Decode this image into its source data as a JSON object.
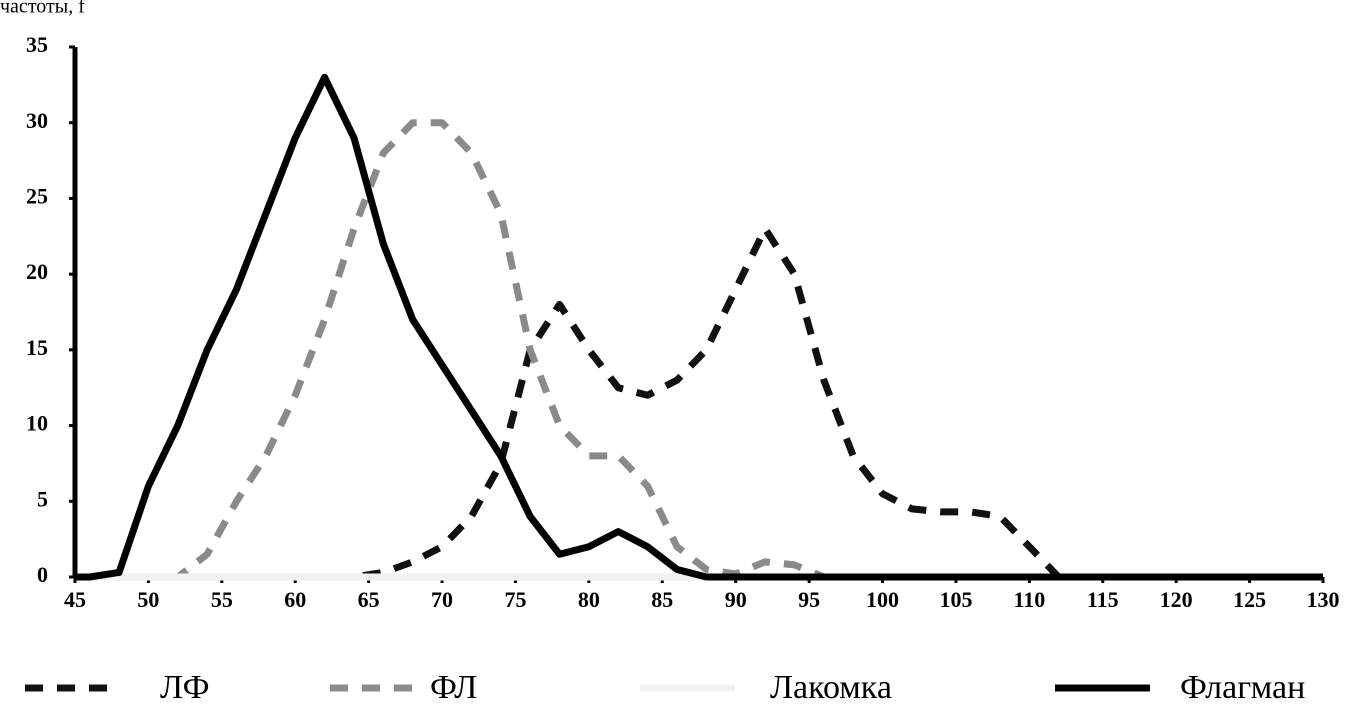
{
  "chart_data": {
    "type": "line",
    "ylabel": "частоты, f",
    "x": [
      45,
      46,
      48,
      50,
      52,
      54,
      56,
      58,
      60,
      62,
      64,
      66,
      68,
      70,
      72,
      74,
      76,
      78,
      80,
      82,
      84,
      86,
      88,
      90,
      92,
      94,
      96,
      98,
      100,
      102,
      104,
      106,
      108,
      110,
      112,
      114,
      116,
      118,
      120,
      122,
      124,
      126,
      128,
      130
    ],
    "xlim": [
      45,
      130
    ],
    "xticks": [
      45,
      50,
      55,
      60,
      65,
      70,
      75,
      80,
      85,
      90,
      95,
      100,
      105,
      110,
      115,
      120,
      125,
      130
    ],
    "ylim": [
      0,
      35
    ],
    "yticks": [
      0,
      5,
      10,
      15,
      20,
      25,
      30,
      35
    ],
    "series": [
      {
        "name": "ЛФ",
        "color": "#111111",
        "dash": "dashed",
        "values": [
          0,
          0,
          0,
          0,
          0,
          0,
          0,
          0,
          0,
          0,
          0,
          0.3,
          1,
          2,
          4,
          7.5,
          15,
          18,
          15,
          12.5,
          12,
          13,
          15,
          19,
          23,
          20,
          13,
          8,
          5.5,
          4.5,
          4.3,
          4.3,
          4,
          2,
          0,
          0,
          0,
          0,
          0,
          0,
          0,
          0,
          0,
          0
        ]
      },
      {
        "name": "ФЛ",
        "color": "#8a8a8a",
        "dash": "dashed",
        "values": [
          0,
          0,
          0,
          0,
          0,
          1.5,
          5,
          8,
          12,
          17,
          23,
          28,
          30,
          30,
          28,
          24,
          15,
          10,
          8,
          8,
          6,
          2,
          0.5,
          0.2,
          1,
          0.8,
          0,
          0,
          0,
          0,
          0,
          0,
          0,
          0,
          0,
          0,
          0,
          0,
          0,
          0,
          0,
          0,
          0,
          0
        ]
      },
      {
        "name": "Лакомка",
        "color": "#f2f2f2",
        "dash": "solid",
        "values": [
          0,
          0,
          0,
          0,
          0,
          0,
          0,
          0,
          0,
          0,
          0,
          0,
          0,
          0,
          0,
          0,
          0,
          0,
          0,
          0,
          0,
          0,
          0,
          0,
          0,
          0,
          0,
          0,
          0,
          0,
          0,
          0,
          0,
          0,
          0,
          0,
          0,
          0,
          0,
          0,
          0,
          0,
          0,
          0
        ]
      },
      {
        "name": "Флагман",
        "color": "#000000",
        "dash": "solid",
        "values": [
          0,
          0,
          0.3,
          6,
          10,
          15,
          19,
          24,
          29,
          33,
          29,
          22,
          17,
          14,
          11,
          8,
          4,
          1.5,
          2,
          3,
          2,
          0.5,
          0,
          0,
          0,
          0,
          0,
          0,
          0,
          0,
          0,
          0,
          0,
          0,
          0,
          0,
          0,
          0,
          0,
          0,
          0,
          0,
          0,
          0
        ]
      }
    ]
  }
}
